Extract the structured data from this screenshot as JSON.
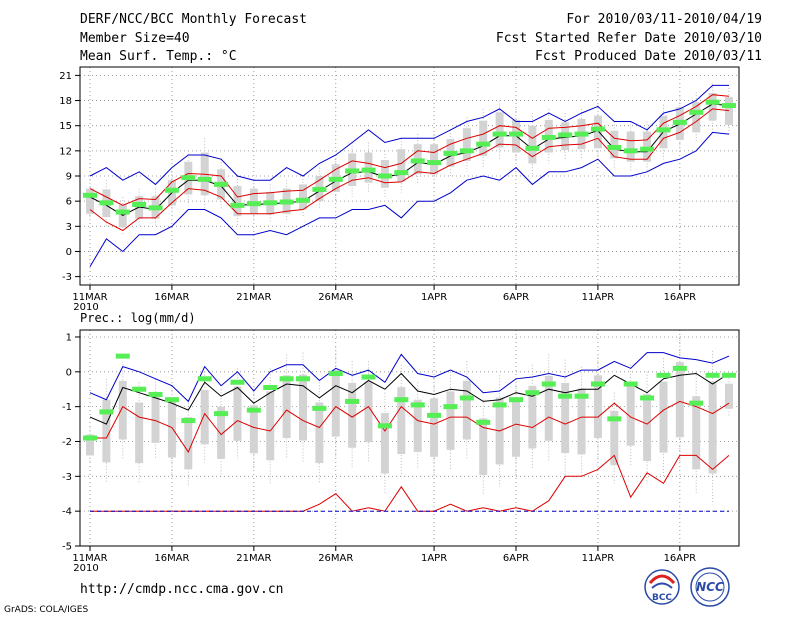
{
  "header": {
    "title": "DERF/NCC/BCC Monthly Forecast",
    "member": "Member Size=40",
    "variable": "Mean Surf. Temp.: °C",
    "period": "For 2010/03/11-2010/04/19",
    "refer": "Fcst Started Refer Date 2010/03/10",
    "produced": "Fcst Produced Date 2010/03/11"
  },
  "footer": {
    "url": "http://cmdp.ncc.cma.gov.cn",
    "grads": "GrADS: COLA/IGES",
    "logo1": "BCC",
    "logo2": "NCC"
  },
  "colors": {
    "box": "#d3d3d3",
    "mean": "#55ee55",
    "blue": "#0000cc",
    "red": "#dd0000",
    "black": "#000000"
  },
  "chart_data": [
    {
      "type": "box",
      "title": "Mean Surf. Temp.: °C",
      "xlabels": [
        "11MAR\n2010",
        "16MAR",
        "21MAR",
        "26MAR",
        "1APR",
        "6APR",
        "11APR",
        "16APR"
      ],
      "xlabel_days": [
        0,
        5,
        10,
        15,
        21,
        26,
        31,
        36
      ],
      "ylim": [
        -4,
        22
      ],
      "yticks": [
        -3,
        0,
        3,
        6,
        9,
        12,
        15,
        18,
        21
      ],
      "days": 40,
      "ens_mean": [
        6.7,
        5.8,
        4.7,
        5.6,
        5.2,
        7.3,
        8.8,
        8.6,
        8.0,
        5.5,
        5.7,
        5.8,
        5.9,
        6.1,
        7.4,
        8.6,
        9.6,
        9.7,
        9.0,
        9.4,
        10.8,
        10.6,
        11.7,
        12.0,
        12.8,
        14.0,
        14.0,
        12.3,
        13.6,
        13.9,
        14.0,
        14.6,
        12.4,
        12.0,
        12.2,
        14.5,
        15.4,
        16.6,
        17.8,
        17.4
      ],
      "box_low": [
        3.5,
        3,
        2,
        3,
        3,
        4.5,
        5.5,
        5,
        5,
        3,
        3.5,
        3.5,
        3.5,
        4,
        5,
        6,
        6.5,
        7,
        6.5,
        7,
        8,
        8,
        9,
        9.5,
        10,
        11,
        10.5,
        9,
        10.5,
        11,
        11,
        11,
        10,
        9.5,
        9.5,
        11,
        12,
        13,
        14.5,
        14
      ],
      "box_high": [
        8.5,
        8.5,
        6.5,
        7.5,
        7.5,
        9.5,
        12,
        13.5,
        11,
        9,
        8.5,
        8,
        8.5,
        9,
        10,
        11.5,
        13,
        13,
        12,
        13.5,
        14,
        14,
        14.5,
        16,
        17,
        18,
        17,
        16.5,
        17,
        16.5,
        17,
        17.5,
        15.5,
        15.5,
        15.5,
        17.5,
        18.5,
        19,
        20,
        19.5
      ],
      "series": [
        {
          "name": "max",
          "color": "blue",
          "values": [
            9,
            10,
            8.5,
            9.5,
            8,
            10,
            11.5,
            11.5,
            11,
            9,
            8.5,
            8.5,
            10,
            9,
            10.5,
            11.5,
            13,
            14.5,
            13,
            13.5,
            13.5,
            13.5,
            14.5,
            15.5,
            16,
            17,
            15.5,
            15.5,
            16.5,
            15.5,
            16.5,
            17.3,
            15.5,
            15.5,
            14.5,
            16.5,
            17,
            18,
            19.8,
            19.8
          ]
        },
        {
          "name": "upper",
          "color": "red",
          "values": [
            7.5,
            6.5,
            5.5,
            6.3,
            6.2,
            8.3,
            9.3,
            9.2,
            9,
            6.5,
            6.9,
            7,
            7.2,
            7.3,
            8.5,
            9.8,
            10.8,
            10.5,
            10,
            10.5,
            12,
            11.8,
            12.8,
            13.5,
            14,
            15,
            14.8,
            13.5,
            14.7,
            14.8,
            15,
            15.3,
            13.5,
            13.2,
            13.3,
            15.3,
            16.2,
            17.3,
            18.7,
            18.5
          ]
        },
        {
          "name": "lower",
          "color": "red",
          "values": [
            5,
            3.5,
            2.5,
            4,
            4,
            5.8,
            7.5,
            7.3,
            6.5,
            4.5,
            4.5,
            4.5,
            4.8,
            5,
            6.3,
            7.5,
            8.5,
            8.8,
            8.2,
            8.3,
            9.5,
            9.3,
            10.3,
            11,
            11.7,
            12.8,
            12.7,
            11.3,
            12.5,
            12.7,
            12.8,
            13.5,
            11.3,
            11,
            11,
            13.5,
            14.2,
            15.5,
            17,
            16.8
          ]
        },
        {
          "name": "min",
          "color": "blue",
          "values": [
            -1.8,
            1.5,
            0,
            2,
            2,
            3,
            5,
            5,
            4,
            2,
            2,
            2.5,
            2,
            3,
            4,
            4,
            5,
            5,
            5.5,
            4,
            6,
            6,
            7,
            8.5,
            9,
            8.5,
            10,
            8,
            9.5,
            9.5,
            10,
            11,
            9,
            9,
            9.5,
            10.5,
            11,
            12,
            14.2,
            14
          ]
        },
        {
          "name": "median",
          "color": "black",
          "values": [
            6.5,
            5.5,
            4.3,
            5.3,
            5,
            7,
            8.5,
            8.5,
            7.8,
            5.5,
            5.6,
            5.7,
            5.8,
            6,
            7.2,
            8.4,
            9.4,
            9.5,
            8.9,
            9.2,
            10.6,
            10.4,
            11.4,
            11.8,
            12.6,
            13.8,
            13.8,
            12.2,
            13.4,
            13.6,
            13.8,
            14.4,
            12.2,
            11.9,
            11.9,
            14.3,
            15.2,
            16.4,
            17.6,
            17.4
          ]
        }
      ]
    },
    {
      "type": "box",
      "title": "Prec.: log(mm/d)",
      "xlabels": [
        "11MAR\n2010",
        "16MAR",
        "21MAR",
        "26MAR",
        "1APR",
        "6APR",
        "11APR",
        "16APR"
      ],
      "xlabel_days": [
        0,
        5,
        10,
        15,
        21,
        26,
        31,
        36
      ],
      "ylim": [
        -5,
        1.2
      ],
      "yticks": [
        -5,
        -4,
        -3,
        -2,
        -1,
        0,
        1
      ],
      "days": 40,
      "ens_mean": [
        -1.9,
        -1.15,
        0.45,
        -0.5,
        -0.65,
        -0.8,
        -1.4,
        -0.2,
        -1.2,
        -0.3,
        -1.1,
        -0.45,
        -0.2,
        -0.2,
        -1.05,
        -0.05,
        -0.85,
        -0.15,
        -1.55,
        -0.8,
        -0.95,
        -1.25,
        -1.0,
        -0.75,
        -1.45,
        -0.95,
        -0.8,
        -0.6,
        -0.35,
        -0.7,
        -0.7,
        -0.35,
        -1.35,
        -0.35,
        -0.75,
        -0.1,
        0.1,
        -0.9,
        -0.1,
        -0.1
      ],
      "box_low": [
        -2.6,
        -3.2,
        -2.5,
        -3.2,
        -2.5,
        -3,
        -3.3,
        -2.6,
        -3,
        -2.5,
        -2.8,
        -3.2,
        -2.5,
        -2.6,
        -3.2,
        -2.5,
        -2.8,
        -2.6,
        -3.5,
        -3,
        -2.8,
        -3,
        -2.8,
        -2.5,
        -3.5,
        -3.3,
        -3,
        -2.8,
        -2.6,
        -3,
        -3,
        -2.5,
        -3.2,
        -2.7,
        -3.2,
        -3,
        -2.6,
        -3.5,
        -3.8,
        -1.3
      ],
      "box_high": [
        -1.6,
        -0.2,
        0.3,
        -0.3,
        -0.2,
        -0.3,
        -0.8,
        0,
        -0.5,
        0.1,
        -0.5,
        0.1,
        0.5,
        0.55,
        -0.3,
        0.7,
        0.3,
        0.3,
        -0.6,
        0.2,
        -0.3,
        -0.2,
        0,
        0.3,
        -0.8,
        -0.1,
        -0.2,
        0.2,
        0.5,
        0.35,
        0.15,
        0.5,
        -0.6,
        0.2,
        0,
        0.4,
        1,
        0,
        0.6,
        -0.1
      ],
      "series": [
        {
          "name": "max",
          "color": "blue",
          "values": [
            -0.6,
            -0.8,
            0.15,
            0.0,
            -0.2,
            -0.4,
            -0.85,
            0.15,
            -0.4,
            0.0,
            -0.55,
            0.0,
            0.2,
            0.2,
            -0.25,
            0.1,
            -0.1,
            0.05,
            -0.3,
            0.5,
            -0.05,
            -0.15,
            0.05,
            -0.15,
            -0.6,
            -0.55,
            -0.2,
            -0.15,
            -0.05,
            -0.15,
            0.05,
            0.05,
            0.3,
            0.1,
            0.55,
            0.55,
            0.4,
            0.35,
            0.25,
            0.45
          ]
        },
        {
          "name": "upper",
          "color": "black",
          "values": [
            -1.3,
            -1.5,
            -0.45,
            -0.6,
            -0.75,
            -0.9,
            -1.1,
            -0.3,
            -0.7,
            -0.45,
            -0.9,
            -0.6,
            -0.35,
            -0.4,
            -0.75,
            -0.4,
            -0.6,
            -0.25,
            -0.5,
            -0.05,
            -0.55,
            -0.65,
            -0.5,
            -0.55,
            -0.85,
            -0.8,
            -0.6,
            -0.7,
            -0.5,
            -0.6,
            -0.5,
            -0.5,
            -0.1,
            -0.35,
            -0.6,
            -0.2,
            -0.1,
            -0.05,
            -0.35,
            -0.05
          ]
        },
        {
          "name": "lower",
          "color": "red",
          "values": [
            -1.9,
            -1.9,
            -1.0,
            -1.3,
            -1.4,
            -1.6,
            -2.3,
            -1.2,
            -1.8,
            -1.4,
            -1.6,
            -1.7,
            -1.1,
            -1.4,
            -1.6,
            -1.0,
            -1.3,
            -1.0,
            -1.7,
            -1.0,
            -1.4,
            -1.5,
            -1.3,
            -1.3,
            -1.6,
            -1.7,
            -1.5,
            -1.6,
            -1.3,
            -1.5,
            -1.3,
            -1.3,
            -0.9,
            -1.3,
            -1.5,
            -1.1,
            -0.85,
            -1.0,
            -1.2,
            -0.9
          ]
        },
        {
          "name": "min",
          "color": "red",
          "values": [
            -4,
            -4,
            -4,
            -4,
            -4,
            -4,
            -4,
            -4,
            -4,
            -4,
            -4,
            -4,
            -4,
            -4,
            -3.8,
            -3.5,
            -4,
            -3.9,
            -4,
            -3.3,
            -4,
            -4,
            -3.8,
            -4,
            -3.9,
            -4,
            -3.9,
            -4,
            -3.7,
            -3.0,
            -3.0,
            -2.8,
            -2.4,
            -3.6,
            -2.9,
            -3.2,
            -2.4,
            -2.4,
            -2.8,
            -2.4
          ]
        },
        {
          "name": "floor",
          "color": "blue",
          "values": [
            -4,
            -4,
            -4,
            -4,
            -4,
            -4,
            -4,
            -4,
            -4,
            -4,
            -4,
            -4,
            -4,
            -4,
            -4,
            -4,
            -4,
            -4,
            -4,
            -4,
            -4,
            -4,
            -4,
            -4,
            -4,
            -4,
            -4,
            -4,
            -4,
            -4,
            -4,
            -4,
            -4,
            -4,
            -4,
            -4,
            -4,
            -4,
            -4,
            -4
          ]
        }
      ]
    }
  ]
}
